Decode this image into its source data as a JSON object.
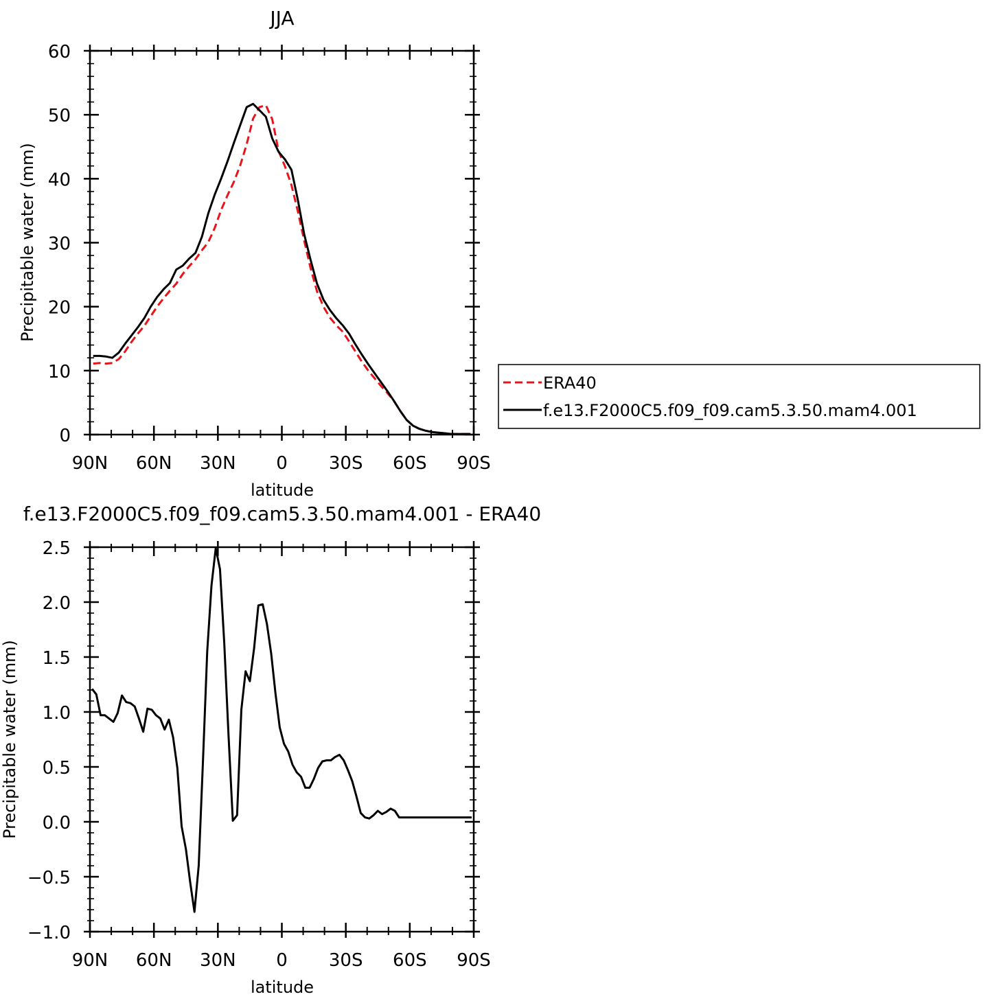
{
  "chart_data": [
    {
      "type": "line",
      "title": "JJA",
      "xlabel": "latitude",
      "ylabel": "Precipitable water (mm)",
      "xlim": [
        -90,
        90
      ],
      "ylim": [
        0,
        60
      ],
      "x_ticks": [
        {
          "value": -90,
          "label": "90N"
        },
        {
          "value": -60,
          "label": "60N"
        },
        {
          "value": -30,
          "label": "30N"
        },
        {
          "value": 0,
          "label": "0"
        },
        {
          "value": 30,
          "label": "30S"
        },
        {
          "value": 60,
          "label": "60S"
        },
        {
          "value": 90,
          "label": "90S"
        }
      ],
      "y_ticks": [
        {
          "value": 0,
          "label": "0"
        },
        {
          "value": 10,
          "label": "10"
        },
        {
          "value": 20,
          "label": "20"
        },
        {
          "value": 30,
          "label": "30"
        },
        {
          "value": 40,
          "label": "40"
        },
        {
          "value": 50,
          "label": "50"
        },
        {
          "value": 60,
          "label": "60"
        }
      ],
      "grid": false,
      "legend": {
        "position": "right",
        "entries": [
          "ERA40",
          "f.e13.F2000C5.f09_f09.cam5.3.50.mam4.001"
        ]
      },
      "series": [
        {
          "name": "ERA40",
          "color": "#e8141b",
          "dash": "dashed",
          "x": [
            -88.5,
            -85.5,
            -82.5,
            -79.5,
            -76.5,
            -73.5,
            -70.5,
            -67.5,
            -64.5,
            -61.5,
            -58.5,
            -55.5,
            -52.5,
            -49.5,
            -46.5,
            -43.5,
            -40.5,
            -37.5,
            -34.5,
            -31.5,
            -28.5,
            -25.5,
            -22.5,
            -19.5,
            -16.5,
            -13.5,
            -10.5,
            -7.5,
            -4.5,
            -1.5,
            1.5,
            4.5,
            7.5,
            10.5,
            13.5,
            16.5,
            19.5,
            22.5,
            25.5,
            28.5,
            31.5,
            34.5,
            37.5,
            40.5,
            43.5,
            46.5,
            49.5,
            52.5,
            55.5,
            58.5,
            61.5,
            64.5,
            67.5,
            70.5,
            73.5,
            76.5,
            79.5,
            82.5,
            85.5,
            88.5
          ],
          "y": [
            11.1,
            11.2,
            11.1,
            11.2,
            11.8,
            13.0,
            14.5,
            15.8,
            17.0,
            18.5,
            20.0,
            21.3,
            22.5,
            23.6,
            25.1,
            26.3,
            27.4,
            28.8,
            30.1,
            32.3,
            35.1,
            37.4,
            39.5,
            42.1,
            45.4,
            49.4,
            51.2,
            51.5,
            49.3,
            44.3,
            41.9,
            39.0,
            34.9,
            30.3,
            26.0,
            22.4,
            20.0,
            18.3,
            17.1,
            16.1,
            14.6,
            13.0,
            11.4,
            10.0,
            8.8,
            7.6,
            6.5,
            5.3,
            3.7,
            2.3,
            1.4,
            0.9,
            0.6,
            0.4,
            0.3,
            0.2,
            0.1,
            0.1,
            0.1,
            0.1
          ]
        },
        {
          "name": "f.e13.F2000C5.f09_f09.cam5.3.50.mam4.001",
          "color": "#000000",
          "dash": "solid",
          "x": [
            -88.5,
            -85.5,
            -82.5,
            -79.5,
            -76.5,
            -73.5,
            -70.5,
            -67.5,
            -64.5,
            -61.5,
            -58.5,
            -55.5,
            -52.5,
            -49.5,
            -46.5,
            -43.5,
            -40.5,
            -37.5,
            -34.5,
            -31.5,
            -28.5,
            -25.5,
            -22.5,
            -19.5,
            -16.5,
            -13.5,
            -10.5,
            -7.5,
            -4.5,
            -1.5,
            1.5,
            4.5,
            7.5,
            10.5,
            13.5,
            16.5,
            19.5,
            22.5,
            25.5,
            28.5,
            31.5,
            34.5,
            37.5,
            40.5,
            43.5,
            46.5,
            49.5,
            52.5,
            55.5,
            58.5,
            61.5,
            64.5,
            67.5,
            70.5,
            73.5,
            76.5,
            79.5,
            82.5,
            85.5,
            88.5
          ],
          "y": [
            12.3,
            12.3,
            12.2,
            12.0,
            12.8,
            14.2,
            15.5,
            16.8,
            18.2,
            20.0,
            21.5,
            22.7,
            23.7,
            25.8,
            26.4,
            27.5,
            28.4,
            30.9,
            34.6,
            37.5,
            40.0,
            42.7,
            45.6,
            48.4,
            51.2,
            51.7,
            50.7,
            49.7,
            46.3,
            44.2,
            43.0,
            41.4,
            36.7,
            31.3,
            27.3,
            23.6,
            21.1,
            19.5,
            18.2,
            17.1,
            15.8,
            14.1,
            12.5,
            11.0,
            9.6,
            8.2,
            6.8,
            5.3,
            3.7,
            2.3,
            1.4,
            0.9,
            0.6,
            0.4,
            0.3,
            0.2,
            0.1,
            0.1,
            0.1,
            0.1
          ]
        }
      ]
    },
    {
      "type": "line",
      "title": "f.e13.F2000C5.f09_f09.cam5.3.50.mam4.001 - ERA40",
      "xlabel": "latitude",
      "ylabel": "Precipitable water (mm)",
      "xlim": [
        -90,
        90
      ],
      "ylim": [
        -1.0,
        2.5
      ],
      "x_ticks": [
        {
          "value": -90,
          "label": "90N"
        },
        {
          "value": -60,
          "label": "60N"
        },
        {
          "value": -30,
          "label": "30N"
        },
        {
          "value": 0,
          "label": "0"
        },
        {
          "value": 30,
          "label": "30S"
        },
        {
          "value": 60,
          "label": "60S"
        },
        {
          "value": 90,
          "label": "90S"
        }
      ],
      "y_ticks": [
        {
          "value": -1.0,
          "label": "−1.0"
        },
        {
          "value": -0.5,
          "label": "−0.5"
        },
        {
          "value": 0.0,
          "label": "0.0"
        },
        {
          "value": 0.5,
          "label": "0.5"
        },
        {
          "value": 1.0,
          "label": "1.0"
        },
        {
          "value": 1.5,
          "label": "1.5"
        },
        {
          "value": 2.0,
          "label": "2.0"
        },
        {
          "value": 2.5,
          "label": "2.5"
        }
      ],
      "grid": false,
      "series": [
        {
          "color": "#000000",
          "dash": "solid",
          "x": [
            -89,
            -87,
            -85,
            -83,
            -81,
            -79,
            -77,
            -75,
            -73,
            -71,
            -69,
            -67,
            -65,
            -63,
            -61,
            -59,
            -57,
            -55,
            -53,
            -51,
            -49,
            -47,
            -45,
            -43,
            -41,
            -39,
            -37,
            -35,
            -33,
            -31,
            -29,
            -27,
            -25,
            -23,
            -21,
            -19,
            -17,
            -15,
            -13,
            -11,
            -9,
            -7,
            -5,
            -3,
            -1,
            1,
            3,
            5,
            7,
            9,
            11,
            13,
            15,
            17,
            19,
            21,
            23,
            25,
            27,
            29,
            31,
            33,
            35,
            37,
            39,
            41,
            43,
            45,
            47,
            49,
            51,
            53,
            55,
            57,
            59,
            61,
            63,
            65,
            67,
            69,
            71,
            73,
            75,
            77,
            79,
            81,
            83,
            85,
            87,
            89
          ],
          "y": [
            1.21,
            1.16,
            0.97,
            0.97,
            0.94,
            0.91,
            0.99,
            1.15,
            1.09,
            1.08,
            1.05,
            0.94,
            0.82,
            1.03,
            1.02,
            0.97,
            0.94,
            0.84,
            0.93,
            0.77,
            0.49,
            -0.04,
            -0.25,
            -0.55,
            -0.82,
            -0.4,
            0.55,
            1.55,
            2.15,
            2.49,
            2.3,
            1.63,
            0.78,
            0.01,
            0.06,
            1.02,
            1.37,
            1.28,
            1.58,
            1.97,
            1.98,
            1.8,
            1.53,
            1.17,
            0.86,
            0.71,
            0.64,
            0.52,
            0.45,
            0.41,
            0.31,
            0.31,
            0.39,
            0.49,
            0.55,
            0.56,
            0.56,
            0.59,
            0.61,
            0.56,
            0.47,
            0.37,
            0.23,
            0.08,
            0.04,
            0.03,
            0.06,
            0.1,
            0.07,
            0.09,
            0.12,
            0.1,
            0.04,
            0.04,
            0.04,
            0.04,
            0.04,
            0.04,
            0.04,
            0.04,
            0.04,
            0.04,
            0.04,
            0.04,
            0.04,
            0.04,
            0.04,
            0.04,
            0.04,
            0.04
          ]
        }
      ]
    }
  ]
}
